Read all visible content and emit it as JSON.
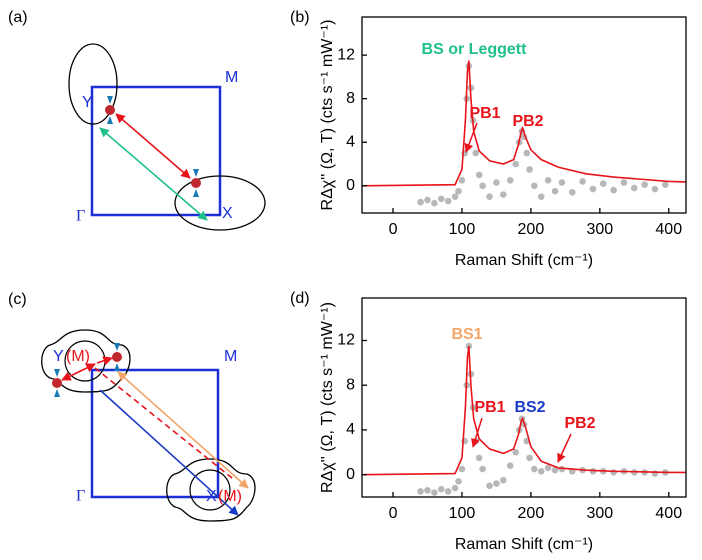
{
  "diagrams": [
    {
      "label": "(a)",
      "points": [
        "Y",
        "M",
        "Γ",
        "X"
      ]
    },
    {
      "label": "(c)",
      "points": [
        "Y",
        "(M)",
        "M",
        "Γ",
        "X",
        "(M)"
      ]
    }
  ],
  "chart_data": [
    {
      "type": "line",
      "panel_label": "(b)",
      "x_label": "Raman Shift (cm⁻¹)",
      "y_label": "RΔχ'' (Ω, T) (cts s⁻¹ mW⁻¹)",
      "xlim": [
        -45,
        425
      ],
      "ylim": [
        -2.5,
        15.5
      ],
      "xticks": [
        0,
        100,
        200,
        300,
        400
      ],
      "yticks": [
        0,
        4,
        8,
        12
      ],
      "annotations": [
        {
          "text": "BS or Leggett",
          "color": "#20c08a"
        },
        {
          "text": "PB1",
          "color": "#e8141b"
        },
        {
          "text": "PB2",
          "color": "#e8141b"
        }
      ],
      "series": [
        {
          "type": "scatter",
          "color": "#b8b8b8",
          "x": [
            40,
            50,
            60,
            70,
            80,
            90,
            95,
            100,
            104,
            107,
            110,
            113,
            116,
            120,
            125,
            130,
            140,
            150,
            160,
            170,
            178,
            183,
            187,
            190,
            194,
            198,
            205,
            215,
            225,
            235,
            245,
            260,
            275,
            290,
            305,
            320,
            335,
            350,
            365,
            380,
            395
          ],
          "values": [
            -1.5,
            -1.3,
            -1.6,
            -1.2,
            -1.4,
            -1.0,
            -0.5,
            0.5,
            3,
            8,
            11,
            9,
            6,
            3,
            1,
            0,
            -1,
            0.3,
            -0.8,
            0.5,
            2,
            4,
            5,
            4.5,
            3,
            1.5,
            0,
            -1,
            0.5,
            -0.5,
            0.3,
            -0.6,
            0.4,
            -0.3,
            0.2,
            -0.4,
            0.3,
            -0.2,
            0.1,
            -0.3,
            0.1
          ]
        },
        {
          "type": "line",
          "color": "#e8141b",
          "x": [
            -45,
            90,
            100,
            105,
            108,
            110,
            113,
            117,
            125,
            140,
            160,
            175,
            182,
            186,
            188,
            192,
            200,
            215,
            240,
            280,
            320,
            360,
            400,
            425
          ],
          "values": [
            0,
            0.1,
            1.5,
            6,
            10.5,
            11.5,
            8,
            5,
            3.2,
            2.3,
            2.0,
            2.4,
            3.8,
            5,
            5.3,
            4.5,
            3.3,
            2.4,
            1.7,
            1.1,
            0.8,
            0.6,
            0.4,
            0.35
          ]
        }
      ]
    },
    {
      "type": "line",
      "panel_label": "(d)",
      "x_label": "Raman Shift (cm⁻¹)",
      "y_label": "RΔχ'' (Ω, T) (cts s⁻¹ mW⁻¹)",
      "xlim": [
        -45,
        425
      ],
      "ylim": [
        -2.0,
        15.8
      ],
      "xticks": [
        0,
        100,
        200,
        300,
        400
      ],
      "yticks": [
        0,
        4,
        8,
        12
      ],
      "annotations": [
        {
          "text": "BS1",
          "color": "#f4a66a"
        },
        {
          "text": "PB1",
          "color": "#e8141b"
        },
        {
          "text": "BS2",
          "color": "#1a3cc4"
        },
        {
          "text": "PB2",
          "color": "#e8141b"
        }
      ],
      "series": [
        {
          "type": "scatter",
          "color": "#b8b8b8",
          "x": [
            40,
            50,
            60,
            70,
            80,
            90,
            95,
            100,
            104,
            107,
            110,
            113,
            116,
            120,
            125,
            130,
            140,
            150,
            160,
            170,
            178,
            183,
            187,
            190,
            194,
            198,
            205,
            215,
            225,
            235,
            245,
            260,
            275,
            290,
            305,
            320,
            335,
            350,
            365,
            380,
            395
          ],
          "values": [
            -1.5,
            -1.4,
            -1.6,
            -1.3,
            -1.5,
            -1.2,
            -0.6,
            0.5,
            3,
            8,
            11.5,
            9,
            6,
            3,
            1.5,
            0.5,
            -1,
            -0.8,
            -0.5,
            0.8,
            2,
            4,
            5,
            4.5,
            3,
            1.5,
            0.5,
            0.3,
            0.6,
            0.4,
            0.5,
            0.3,
            0.4,
            0.3,
            0.3,
            0.2,
            0.3,
            0.2,
            0.2,
            0.1,
            0.2
          ]
        },
        {
          "type": "line",
          "color": "#e8141b",
          "x": [
            -45,
            90,
            100,
            105,
            108,
            110,
            113,
            117,
            125,
            140,
            160,
            175,
            182,
            186,
            188,
            192,
            200,
            215,
            240,
            280,
            320,
            360,
            400,
            425
          ],
          "values": [
            0,
            0.1,
            1.5,
            6,
            10.5,
            11.5,
            8,
            5,
            3.2,
            2.3,
            1.9,
            2.3,
            3.6,
            4.8,
            5.0,
            4.3,
            2.5,
            1.2,
            0.6,
            0.4,
            0.3,
            0.25,
            0.2,
            0.2
          ]
        }
      ]
    }
  ]
}
